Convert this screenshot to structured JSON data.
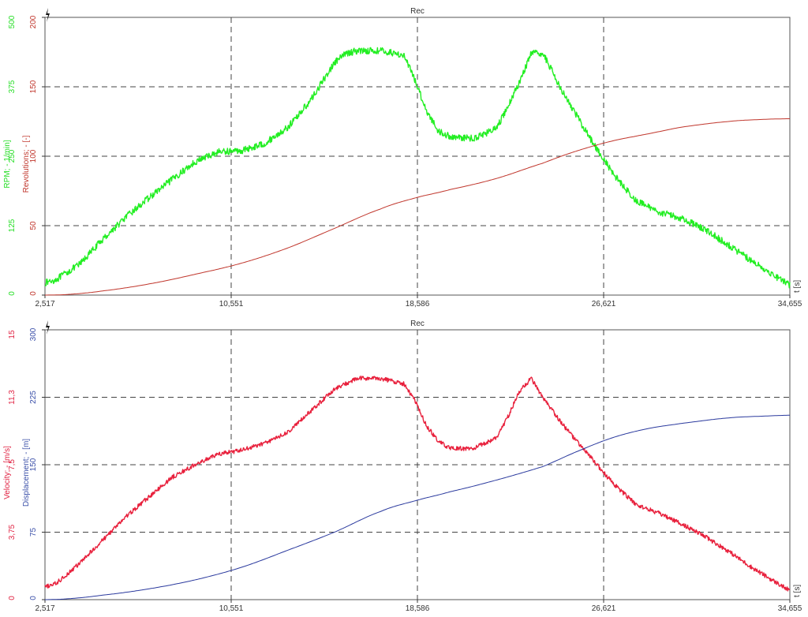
{
  "chart_data": [
    {
      "type": "line",
      "title": "Rec",
      "xlabel": "t [s]",
      "xlim": [
        2.517,
        34.655
      ],
      "x_ticks": [
        "2,517",
        "10,551",
        "18,586",
        "26,621",
        "34,655"
      ],
      "x_tick_values": [
        2.517,
        10.551,
        18.586,
        26.621,
        34.655
      ],
      "grid": true,
      "axes": [
        {
          "id": "left1",
          "label": "RPM; - 1/min]",
          "color": "#22dd22",
          "ylim": [
            0,
            500
          ],
          "ticks": [
            "0",
            "125",
            "250",
            "375",
            "500"
          ]
        },
        {
          "id": "left2",
          "label": "Revolutions; - [-]",
          "color": "#c0362c",
          "ylim": [
            0,
            200
          ],
          "ticks": [
            "0",
            "50",
            "100",
            "150",
            "200"
          ]
        }
      ],
      "series": [
        {
          "axis": "left1",
          "color": "#22ee22",
          "noise": 6,
          "x": [
            2.517,
            3.0,
            4.0,
            5.0,
            6.0,
            7.0,
            8.0,
            9.0,
            10.0,
            11.0,
            12.0,
            13.0,
            14.0,
            15.0,
            15.5,
            16.0,
            17.0,
            18.0,
            18.5,
            19.0,
            19.5,
            20.0,
            21.0,
            22.0,
            22.5,
            23.0,
            23.5,
            24.0,
            25.0,
            26.0,
            27.0,
            28.0,
            29.0,
            30.0,
            31.0,
            32.0,
            33.0,
            34.0,
            34.655
          ],
          "y": [
            22,
            28,
            55,
            100,
            140,
            175,
            208,
            240,
            258,
            260,
            273,
            302,
            352,
            418,
            435,
            440,
            440,
            432,
            385,
            330,
            295,
            285,
            282,
            300,
            340,
            385,
            435,
            435,
            355,
            285,
            220,
            170,
            150,
            138,
            118,
            90,
            62,
            35,
            18
          ]
        },
        {
          "axis": "left2",
          "color": "#c0362c",
          "noise": 0,
          "x": [
            2.517,
            3.5,
            5.0,
            7.0,
            9.0,
            11.0,
            13.0,
            15.0,
            17.0,
            18.5,
            20.0,
            22.0,
            24.0,
            25.5,
            27.0,
            28.5,
            30.0,
            32.0,
            33.5,
            34.655
          ],
          "y": [
            0,
            0.5,
            3,
            8,
            15,
            23,
            34,
            48,
            62,
            70,
            76,
            84,
            95,
            104,
            111,
            116,
            121,
            125,
            126.5,
            127
          ]
        }
      ]
    },
    {
      "type": "line",
      "title": "Rec",
      "xlabel": "t [s]",
      "xlim": [
        2.517,
        34.655
      ],
      "x_ticks": [
        "2,517",
        "10,551",
        "18,586",
        "26,621",
        "34,655"
      ],
      "x_tick_values": [
        2.517,
        10.551,
        18.586,
        26.621,
        34.655
      ],
      "grid": true,
      "axes": [
        {
          "id": "left1",
          "label": "Velocity; - [m/s]",
          "color": "#e02040",
          "ylim": [
            0,
            15
          ],
          "ticks": [
            "0",
            "3,75",
            "7,5",
            "11,3",
            "15"
          ]
        },
        {
          "id": "left2",
          "label": "Displacement; - [m]",
          "color": "#3a4fa8",
          "ylim": [
            0,
            300
          ],
          "ticks": [
            "0",
            "75",
            "150",
            "225",
            "300"
          ]
        }
      ],
      "series": [
        {
          "axis": "left1",
          "color": "#e8203c",
          "noise": 0.12,
          "x": [
            2.517,
            3.0,
            4.0,
            5.0,
            6.0,
            7.0,
            8.0,
            9.0,
            10.0,
            11.0,
            12.0,
            13.0,
            14.0,
            15.0,
            15.5,
            16.0,
            17.0,
            18.0,
            18.5,
            19.0,
            19.5,
            20.0,
            21.0,
            22.0,
            22.5,
            23.0,
            23.5,
            24.0,
            25.0,
            26.0,
            27.0,
            28.0,
            29.0,
            30.0,
            31.0,
            32.0,
            33.0,
            34.0,
            34.655
          ],
          "y": [
            0.7,
            0.9,
            2.0,
            3.3,
            4.6,
            5.7,
            6.8,
            7.5,
            8.1,
            8.3,
            8.7,
            9.3,
            10.5,
            11.7,
            12.0,
            12.3,
            12.3,
            12.0,
            11.0,
            9.6,
            8.8,
            8.4,
            8.4,
            9.0,
            10.2,
            11.6,
            12.3,
            11.2,
            9.5,
            8.0,
            6.5,
            5.3,
            4.8,
            4.2,
            3.5,
            2.7,
            1.8,
            1.0,
            0.5
          ]
        },
        {
          "axis": "left2",
          "color": "#2b3a9e",
          "noise": 0,
          "x": [
            2.517,
            3.5,
            5.0,
            7.0,
            9.0,
            11.0,
            13.0,
            15.0,
            17.0,
            18.5,
            20.0,
            22.0,
            24.0,
            25.5,
            27.0,
            28.5,
            30.0,
            32.0,
            33.5,
            34.655
          ],
          "y": [
            0,
            1,
            5,
            12,
            22,
            36,
            55,
            75,
            98,
            110,
            120,
            133,
            148,
            165,
            180,
            190,
            196,
            202,
            204,
            205
          ]
        }
      ]
    }
  ]
}
